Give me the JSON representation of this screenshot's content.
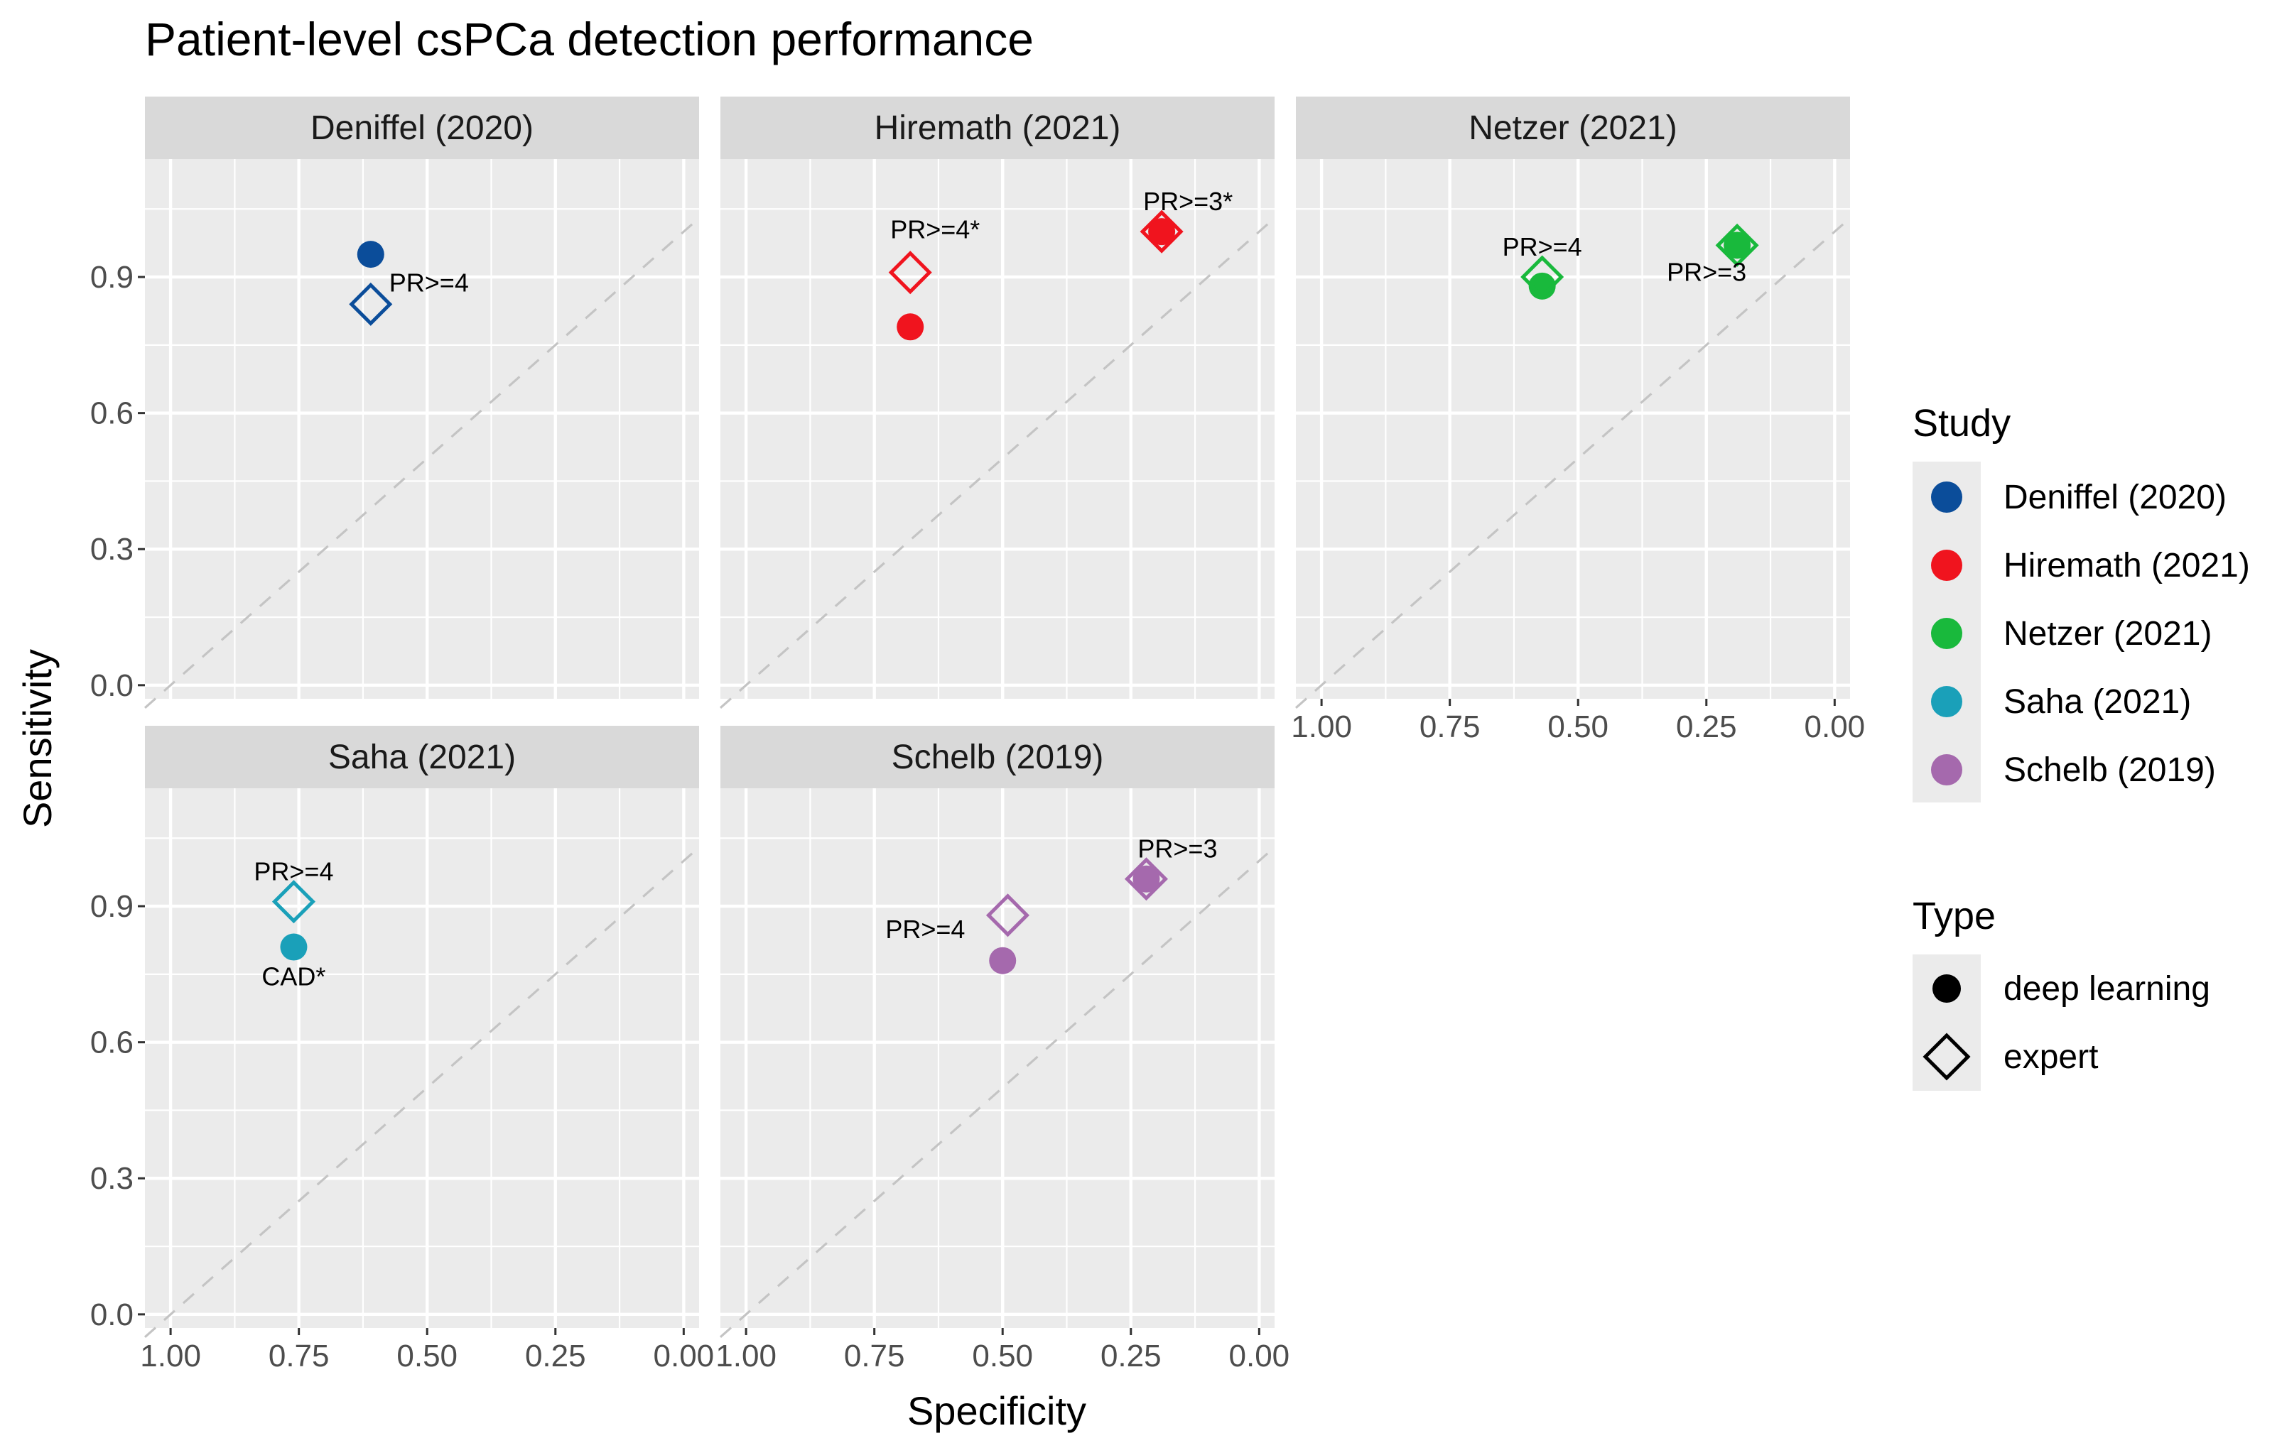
{
  "chart_data": {
    "type": "scatter",
    "title": "Patient-level csPCa detection performance",
    "xlabel": "Specificity",
    "ylabel": "Sensitivity",
    "x_reversed": true,
    "xlim": [
      1.05,
      -0.03
    ],
    "ylim": [
      -0.03,
      1.16
    ],
    "x_ticks": [
      1.0,
      0.75,
      0.5,
      0.25,
      0.0
    ],
    "x_tick_labels": [
      "1.00",
      "0.75",
      "0.50",
      "0.25",
      "0.00"
    ],
    "y_ticks": [
      0.0,
      0.3,
      0.6,
      0.9
    ],
    "y_tick_labels": [
      "0.0",
      "0.3",
      "0.6",
      "0.9"
    ],
    "panels": [
      {
        "strip": "Deniffel (2020)",
        "color": "#0b4d9a",
        "points": [
          {
            "x": 0.61,
            "y": 0.95,
            "type": "deep learning",
            "label": ""
          },
          {
            "x": 0.61,
            "y": 0.84,
            "type": "expert",
            "label": "PR>=4"
          }
        ]
      },
      {
        "strip": "Hiremath (2021)",
        "color": "#f0141e",
        "points": [
          {
            "x": 0.68,
            "y": 0.79,
            "type": "deep learning",
            "label": ""
          },
          {
            "x": 0.68,
            "y": 0.91,
            "type": "expert",
            "label": "PR>=4*"
          },
          {
            "x": 0.19,
            "y": 1.0,
            "type": "deep learning",
            "label": ""
          },
          {
            "x": 0.19,
            "y": 1.0,
            "type": "expert",
            "label": "PR>=3*"
          }
        ]
      },
      {
        "strip": "Netzer (2021)",
        "color": "#19b93c",
        "points": [
          {
            "x": 0.57,
            "y": 0.88,
            "type": "deep learning",
            "label": ""
          },
          {
            "x": 0.57,
            "y": 0.9,
            "type": "expert",
            "label": "PR>=4"
          },
          {
            "x": 0.19,
            "y": 0.97,
            "type": "deep learning",
            "label": ""
          },
          {
            "x": 0.19,
            "y": 0.97,
            "type": "expert",
            "label": "PR>=3"
          }
        ]
      },
      {
        "strip": "Saha (2021)",
        "color": "#1aa0b9",
        "points": [
          {
            "x": 0.76,
            "y": 0.81,
            "type": "deep learning",
            "label": "CAD*"
          },
          {
            "x": 0.76,
            "y": 0.91,
            "type": "expert",
            "label": "PR>=4"
          }
        ]
      },
      {
        "strip": "Schelb (2019)",
        "color": "#a569ad",
        "points": [
          {
            "x": 0.5,
            "y": 0.78,
            "type": "deep learning",
            "label": ""
          },
          {
            "x": 0.49,
            "y": 0.88,
            "type": "expert",
            "label": "PR>=4"
          },
          {
            "x": 0.22,
            "y": 0.96,
            "type": "deep learning",
            "label": ""
          },
          {
            "x": 0.22,
            "y": 0.96,
            "type": "expert",
            "label": "PR>=3"
          }
        ]
      }
    ],
    "legend": {
      "study_title": "Study",
      "study_entries": [
        {
          "label": "Deniffel (2020)",
          "color": "#0b4d9a"
        },
        {
          "label": "Hiremath (2021)",
          "color": "#f0141e"
        },
        {
          "label": "Netzer (2021)",
          "color": "#19b93c"
        },
        {
          "label": "Saha (2021)",
          "color": "#1aa0b9"
        },
        {
          "label": "Schelb (2019)",
          "color": "#a569ad"
        }
      ],
      "type_title": "Type",
      "type_entries": [
        {
          "label": "deep learning",
          "shape": "circle"
        },
        {
          "label": "expert",
          "shape": "diamond"
        }
      ],
      "placement": "right"
    }
  }
}
